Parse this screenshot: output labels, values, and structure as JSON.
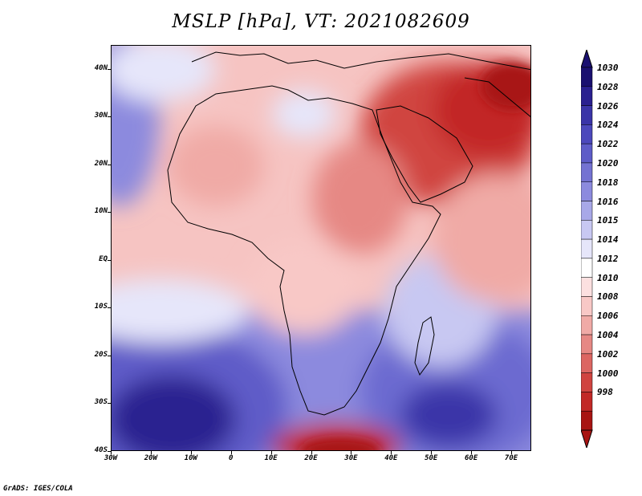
{
  "title": "MSLP [hPa], VT: 2021082609",
  "credit": "GrADS: IGES/COLA",
  "map": {
    "lon_range": [
      -30,
      75
    ],
    "lat_range": [
      -40,
      45
    ],
    "lat_labels": [
      {
        "lat": 40,
        "label": "40N"
      },
      {
        "lat": 30,
        "label": "30N"
      },
      {
        "lat": 20,
        "label": "20N"
      },
      {
        "lat": 10,
        "label": "10N"
      },
      {
        "lat": 0,
        "label": "EQ"
      },
      {
        "lat": -10,
        "label": "10S"
      },
      {
        "lat": -20,
        "label": "20S"
      },
      {
        "lat": -30,
        "label": "30S"
      },
      {
        "lat": -40,
        "label": "40S"
      }
    ],
    "lon_labels": [
      {
        "lon": -30,
        "label": "30W"
      },
      {
        "lon": -20,
        "label": "20W"
      },
      {
        "lon": -10,
        "label": "10W"
      },
      {
        "lon": 0,
        "label": "0"
      },
      {
        "lon": 10,
        "label": "10E"
      },
      {
        "lon": 20,
        "label": "20E"
      },
      {
        "lon": 30,
        "label": "30E"
      },
      {
        "lon": 40,
        "label": "40E"
      },
      {
        "lon": 50,
        "label": "50E"
      },
      {
        "lon": 60,
        "label": "60E"
      },
      {
        "lon": 70,
        "label": "70E"
      }
    ]
  },
  "colorbar": {
    "labels": [
      "1030",
      "1028",
      "1026",
      "1024",
      "1022",
      "1020",
      "1018",
      "1016",
      "1015",
      "1014",
      "1012",
      "1010",
      "1008",
      "1006",
      "1004",
      "1002",
      "1000",
      "998"
    ],
    "colors": [
      "#1a1070",
      "#2a2090",
      "#3a34a8",
      "#4c48bc",
      "#5e5cc8",
      "#7472d2",
      "#8c8ade",
      "#a8a8e8",
      "#c8c8f2",
      "#e6e6fa",
      "#ffffff",
      "#fce0e0",
      "#f8c8c6",
      "#f0aaa6",
      "#e68884",
      "#dc6662",
      "#d04440",
      "#c22826",
      "#a81412"
    ],
    "source_colors": {
      "low": "#a81412",
      "high": "#1a1070"
    }
  }
}
